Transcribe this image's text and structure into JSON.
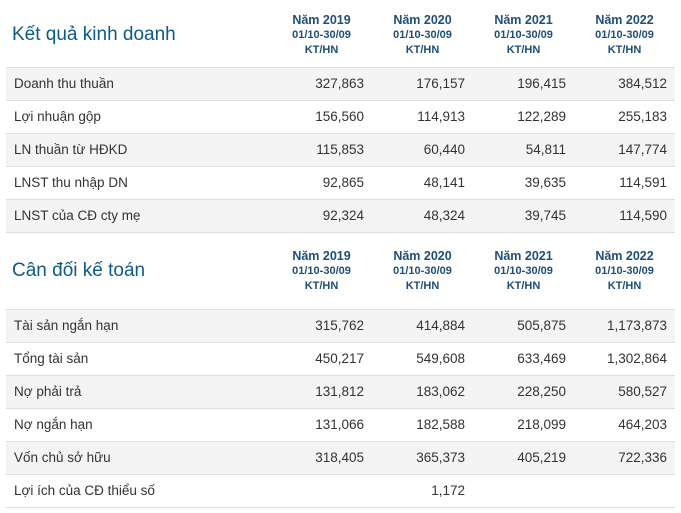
{
  "sections": [
    {
      "title": "Kết quả kinh doanh",
      "years": [
        {
          "name": "Năm 2019",
          "period": "01/10-30/09",
          "unit": "KT/HN"
        },
        {
          "name": "Năm 2020",
          "period": "01/10-30/09",
          "unit": "KT/HN"
        },
        {
          "name": "Năm 2021",
          "period": "01/10-30/09",
          "unit": "KT/HN"
        },
        {
          "name": "Năm 2022",
          "period": "01/10-30/09",
          "unit": "KT/HN"
        }
      ],
      "rows": [
        {
          "label": "Doanh thu thuần",
          "values": [
            "327,863",
            "176,157",
            "196,415",
            "384,512"
          ]
        },
        {
          "label": "Lợi nhuận gộp",
          "values": [
            "156,560",
            "114,913",
            "122,289",
            "255,183"
          ]
        },
        {
          "label": "LN thuần từ HĐKD",
          "values": [
            "115,853",
            "60,440",
            "54,811",
            "147,774"
          ]
        },
        {
          "label": "LNST thu nhập DN",
          "values": [
            "92,865",
            "48,141",
            "39,635",
            "114,591"
          ]
        },
        {
          "label": "LNST của CĐ cty mẹ",
          "values": [
            "92,324",
            "48,324",
            "39,745",
            "114,590"
          ]
        }
      ]
    },
    {
      "title": "Cân đối kế toán",
      "years": [
        {
          "name": "Năm 2019",
          "period": "01/10-30/09",
          "unit": "KT/HN"
        },
        {
          "name": "Năm 2020",
          "period": "01/10-30/09",
          "unit": "KT/HN"
        },
        {
          "name": "Năm 2021",
          "period": "01/10-30/09",
          "unit": "KT/HN"
        },
        {
          "name": "Năm 2022",
          "period": "01/10-30/09",
          "unit": "KT/HN"
        }
      ],
      "rows": [
        {
          "label": "Tài sản ngắn hạn",
          "values": [
            "315,762",
            "414,884",
            "505,875",
            "1,173,873"
          ]
        },
        {
          "label": "Tổng tài sản",
          "values": [
            "450,217",
            "549,608",
            "633,469",
            "1,302,864"
          ]
        },
        {
          "label": "Nợ phải trả",
          "values": [
            "131,812",
            "183,062",
            "228,250",
            "580,527"
          ]
        },
        {
          "label": "Nợ ngắn hạn",
          "values": [
            "131,066",
            "182,588",
            "218,099",
            "464,203"
          ]
        },
        {
          "label": "Vốn chủ sở hữu",
          "values": [
            "318,405",
            "365,373",
            "405,219",
            "722,336"
          ]
        },
        {
          "label": "Lợi ích của CĐ thiểu số",
          "values": [
            "",
            "1,172",
            "",
            ""
          ]
        }
      ]
    }
  ]
}
